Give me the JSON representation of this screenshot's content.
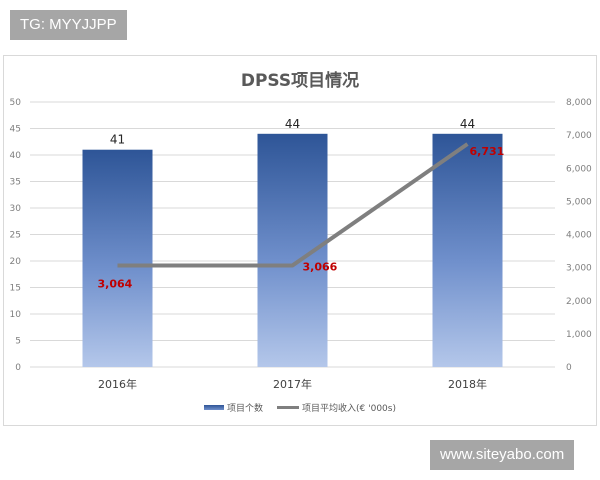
{
  "watermarks": {
    "top_left": "TG: MYYJJPP",
    "bottom_right": "www.siteyabo.com"
  },
  "chart_data": {
    "type": "bar",
    "title": "DPSS项目情况",
    "categories": [
      "2016年",
      "2017年",
      "2018年"
    ],
    "series": [
      {
        "name": "项目个数",
        "type": "bar",
        "axis": "left",
        "values": [
          41,
          44,
          44
        ],
        "color": "#2e5597",
        "labels": [
          "41",
          "44",
          "44"
        ]
      },
      {
        "name": "项目平均收入(€ '000s)",
        "type": "line",
        "axis": "right",
        "values": [
          3064,
          3066,
          6731
        ],
        "color": "#7f7f7f",
        "labels": [
          "3,064",
          "3,066",
          "6,731"
        ],
        "label_color": "#c00000"
      }
    ],
    "left_axis": {
      "ylim": [
        0,
        50
      ],
      "ticks": [
        "0",
        "5",
        "10",
        "15",
        "20",
        "25",
        "30",
        "35",
        "40",
        "45",
        "50"
      ]
    },
    "right_axis": {
      "ylim": [
        0,
        8000
      ],
      "ticks": [
        "0",
        "1,000",
        "2,000",
        "3,000",
        "4,000",
        "5,000",
        "6,000",
        "7,000",
        "8,000"
      ]
    },
    "xlabel": "",
    "ylabel": "",
    "grid": true,
    "legend_position": "bottom"
  }
}
